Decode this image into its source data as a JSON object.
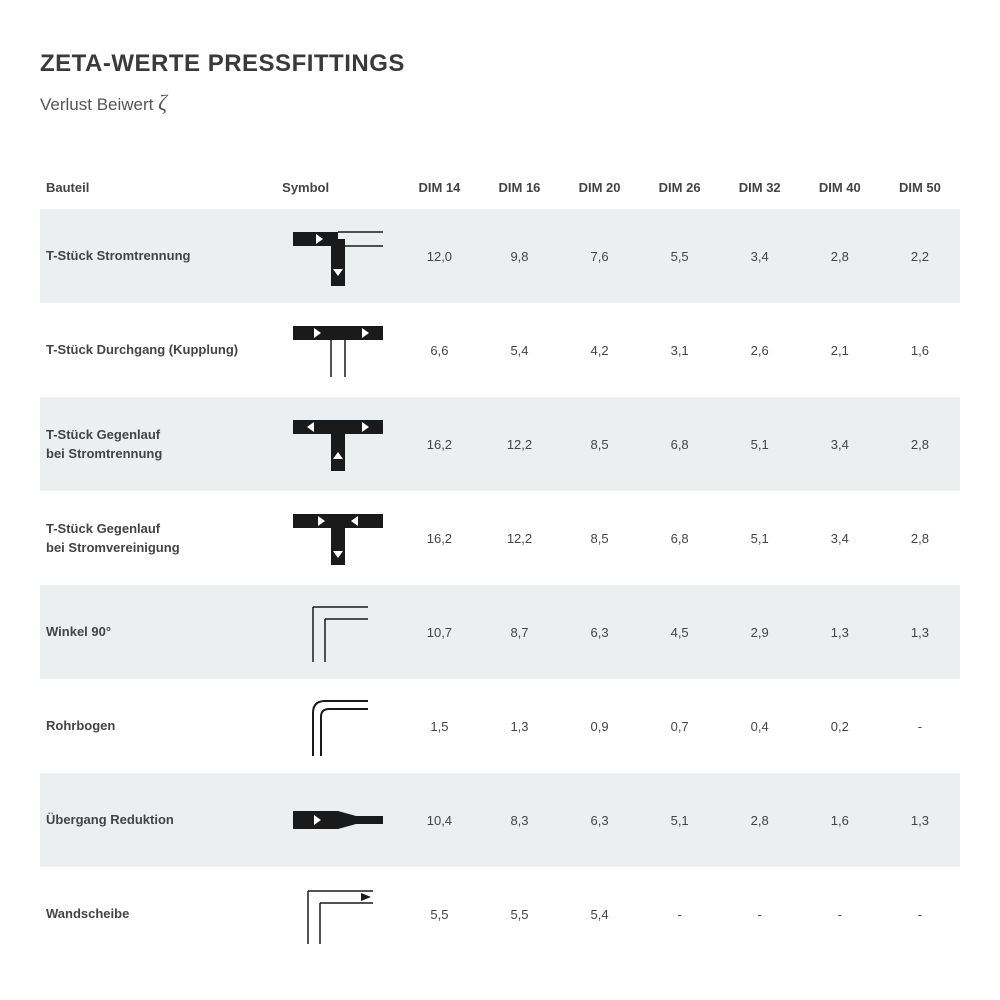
{
  "title": "ZETA-WERTE PRESSFITTINGS",
  "subtitle_prefix": "Verlust Beiwert ",
  "subtitle_symbol": "ζ",
  "colors": {
    "text": "#3a3a3a",
    "row_shade": "#edeeef",
    "icon_fill": "#1a1a1a",
    "icon_stroke": "#1a1a1a",
    "background": "#ffffff"
  },
  "columns": [
    "Bauteil",
    "Symbol",
    "DIM 14",
    "DIM 16",
    "DIM 20",
    "DIM 26",
    "DIM 32",
    "DIM 40",
    "DIM 50"
  ],
  "rows": [
    {
      "label": "T-Stück Stromtrennung",
      "icon": "t_split_down",
      "values": [
        "12,0",
        "9,8",
        "7,6",
        "5,5",
        "3,4",
        "2,8",
        "2,2"
      ]
    },
    {
      "label": "T-Stück Durchgang (Kupplung)",
      "icon": "t_through",
      "values": [
        "6,6",
        "5,4",
        "4,2",
        "3,1",
        "2,6",
        "2,1",
        "1,6"
      ]
    },
    {
      "label": "T-Stück Gegenlauf\nbei Stromtrennung",
      "icon": "t_counter_split",
      "values": [
        "16,2",
        "12,2",
        "8,5",
        "6,8",
        "5,1",
        "3,4",
        "2,8"
      ]
    },
    {
      "label": "T-Stück Gegenlauf\nbei Stromvereinigung",
      "icon": "t_counter_merge",
      "values": [
        "16,2",
        "12,2",
        "8,5",
        "6,8",
        "5,1",
        "3,4",
        "2,8"
      ]
    },
    {
      "label": "Winkel 90°",
      "icon": "elbow90",
      "values": [
        "10,7",
        "8,7",
        "6,3",
        "4,5",
        "2,9",
        "1,3",
        "1,3"
      ]
    },
    {
      "label": "Rohrbogen",
      "icon": "bend",
      "values": [
        "1,5",
        "1,3",
        "0,9",
        "0,7",
        "0,4",
        "0,2",
        "-"
      ]
    },
    {
      "label": "Übergang Reduktion",
      "icon": "reduction",
      "values": [
        "10,4",
        "8,3",
        "6,3",
        "5,1",
        "2,8",
        "1,6",
        "1,3"
      ]
    },
    {
      "label": "Wandscheibe",
      "icon": "wall_disc",
      "values": [
        "5,5",
        "5,5",
        "5,4",
        "-",
        "-",
        "-",
        "-"
      ]
    }
  ]
}
